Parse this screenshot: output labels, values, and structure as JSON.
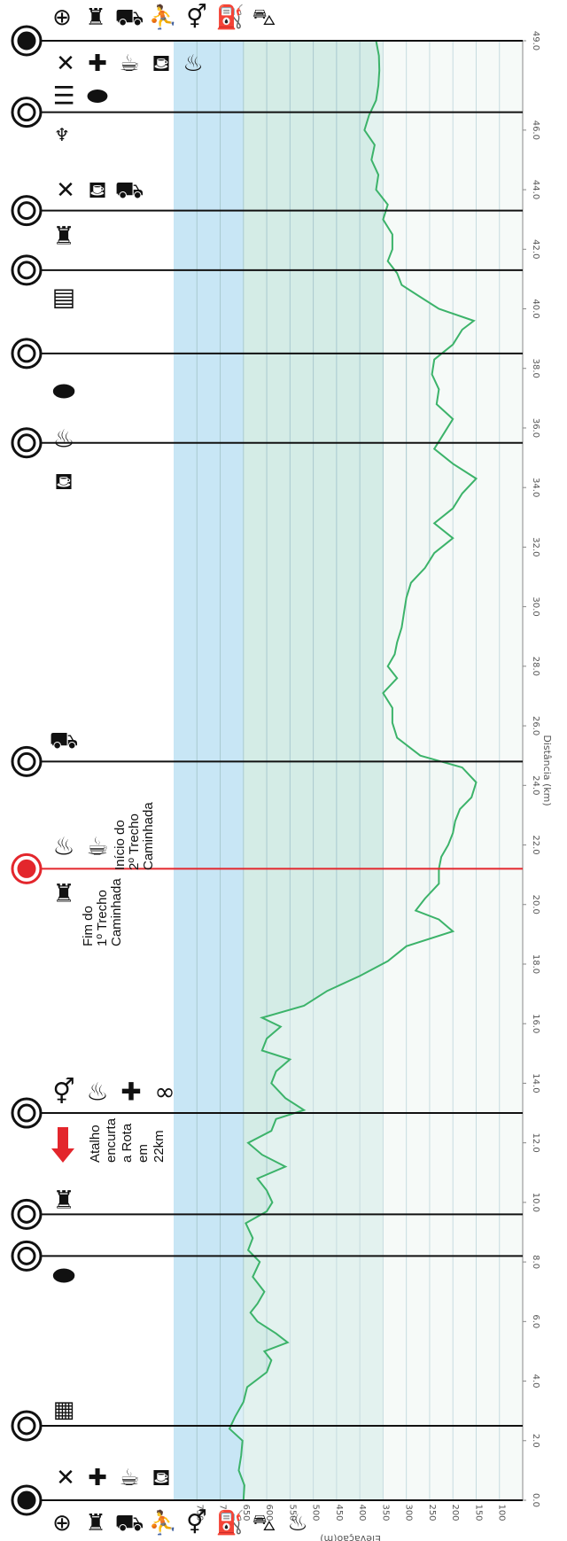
{
  "colors": {
    "profile_line": "#3cb36a",
    "marker_line": "#111111",
    "highlight_marker": "#e3262c",
    "band_blue": "#c8e6f5",
    "band_teal": "#d4ece6",
    "band_white": "#f2f8f5",
    "arrow": "#e3262c"
  },
  "chart_data": {
    "type": "area",
    "orientation": "rotated-90-clockwise",
    "x_axis": {
      "label": "Distância (km)",
      "range": [
        0,
        49
      ],
      "ticks": [
        "0.0",
        "2.0",
        "4.0",
        "6.0",
        "8.0",
        "10.0",
        "12.0",
        "14.0",
        "16.0",
        "18.0",
        "20.0",
        "22.0",
        "24.0",
        "26.0",
        "28.0",
        "30.0",
        "32.0",
        "34.0",
        "36.0",
        "38.0",
        "40.0",
        "42.0",
        "44.0",
        "46.0",
        "49.0"
      ]
    },
    "y_axis": {
      "label": "Elevação(m)",
      "range": [
        50,
        800
      ],
      "ticks": [
        "750",
        "700",
        "650",
        "600",
        "550",
        "500",
        "450",
        "400",
        "350",
        "300",
        "250",
        "200",
        "150",
        "100"
      ]
    },
    "series": [
      {
        "x": [
          0,
          0.5,
          1,
          1.5,
          2,
          2.4,
          2.8,
          3.3,
          3.8,
          4.3,
          4.7,
          5.0,
          5.3,
          5.6,
          6.0,
          6.3,
          6.6,
          7.0,
          7.5,
          8.0,
          8.4,
          8.8,
          9.3,
          9.7,
          10.0,
          10.4,
          10.8,
          11.2,
          11.6,
          12.0,
          12.4,
          12.8,
          13.1,
          13.5,
          14.0,
          14.4,
          14.8,
          15.1,
          15.5,
          15.9,
          16.2,
          16.6,
          17.1,
          17.6,
          18.1,
          18.6,
          19.1,
          19.5,
          19.8,
          20.2,
          20.7,
          21.2,
          21.6,
          22.0,
          22.4,
          22.8,
          23.2,
          23.6,
          24.1,
          24.6,
          25.0,
          25.6,
          26.1,
          26.6,
          27.1,
          27.6,
          28.0,
          28.4,
          28.8,
          29.3,
          29.8,
          30.3,
          30.8,
          31.3,
          31.8,
          32.3,
          32.8,
          33.3,
          33.8,
          34.3,
          34.8,
          35.3,
          35.8,
          36.3,
          36.8,
          37.3,
          37.8,
          38.3,
          38.8,
          39.3,
          39.6,
          40.0,
          40.4,
          40.8,
          41.2,
          41.6,
          42.0,
          42.5,
          43.0,
          43.5,
          44.0,
          44.5,
          45.0,
          45.5,
          46.0,
          46.5,
          47.0,
          47.5,
          48.0,
          48.5,
          49.0
        ],
        "y": [
          650,
          648,
          660,
          655,
          652,
          680,
          668,
          650,
          642,
          600,
          590,
          605,
          555,
          580,
          620,
          635,
          620,
          605,
          630,
          615,
          640,
          630,
          645,
          600,
          588,
          600,
          620,
          560,
          610,
          640,
          590,
          580,
          520,
          560,
          590,
          580,
          550,
          610,
          600,
          570,
          610,
          520,
          470,
          400,
          340,
          300,
          200,
          230,
          280,
          260,
          230,
          230,
          225,
          210,
          200,
          195,
          185,
          160,
          150,
          180,
          270,
          320,
          330,
          330,
          350,
          320,
          340,
          325,
          320,
          310,
          305,
          300,
          290,
          260,
          240,
          200,
          240,
          200,
          180,
          150,
          200,
          240,
          220,
          200,
          235,
          230,
          245,
          240,
          200,
          180,
          155,
          230,
          270,
          310,
          320,
          340,
          330,
          330,
          350,
          340,
          365,
          360,
          375,
          368,
          390,
          380,
          365,
          360,
          358,
          359,
          365
        ]
      }
    ],
    "annotations": [
      {
        "text_lines": [
          "Fim do",
          "1º Trecho",
          "Caminhada"
        ],
        "km": 21.2
      },
      {
        "text_lines": [
          "Início do",
          "2º Trecho",
          "Caminhada"
        ],
        "km": 21.2
      },
      {
        "text_lines": [
          "Atalho",
          "encurta",
          "a Rota",
          "em",
          "22km"
        ],
        "km": 12.4
      }
    ]
  },
  "markers": [
    {
      "km": 0,
      "highlight": false
    },
    {
      "km": 2.5,
      "highlight": false
    },
    {
      "km": 8.2,
      "highlight": false
    },
    {
      "km": 9.6,
      "highlight": false
    },
    {
      "km": 13.0,
      "highlight": false
    },
    {
      "km": 21.2,
      "highlight": true
    },
    {
      "km": 24.8,
      "highlight": false
    },
    {
      "km": 35.5,
      "highlight": false
    },
    {
      "km": 38.5,
      "highlight": false
    },
    {
      "km": 41.3,
      "highlight": false
    },
    {
      "km": 43.3,
      "highlight": false
    },
    {
      "km": 46.6,
      "highlight": false
    },
    {
      "km": 49.0,
      "highlight": false
    }
  ],
  "service_icons": {
    "bottom_row": [
      "atm-icon",
      "castle-icon",
      "cart-icon",
      "hiker-icon",
      "toilets-icon",
      "fuel-icon",
      "bus-icon",
      "rest-icon"
    ],
    "start_km0": [
      "restaurant-icon",
      "pharmacy-icon",
      "coffee-icon",
      "shopping-icon"
    ],
    "km2_5": [
      "map-icon"
    ],
    "km8_2": [
      "bread-icon"
    ],
    "km9_6": [
      "castle-icon"
    ],
    "km13": [
      "toilets-icon",
      "rest-icon",
      "pharmacy-icon",
      "olympic-icon"
    ],
    "km21_fim": [
      "castle-icon"
    ],
    "km21_inicio": [
      "rest-icon",
      "coffee-icon"
    ],
    "km24_8": [
      "cart-icon"
    ],
    "km35_5": [
      "shopping-icon"
    ],
    "km38_5": [
      "rest-icon"
    ],
    "km41_3": [
      "bread-icon"
    ],
    "km43_3": [
      "building-icon"
    ],
    "km44": [
      "castle-icon"
    ],
    "km46_6": [
      "restaurant-icon",
      "shopping-icon",
      "cart-icon"
    ],
    "km47": [
      "wine-icon"
    ],
    "km49": [
      "museum-icon",
      "bread-icon"
    ],
    "end_km49": [
      "restaurant-icon",
      "pharmacy-icon",
      "coffee-icon",
      "shopping-icon",
      "rest-icon"
    ],
    "top_row": [
      "atm-icon",
      "castle-icon",
      "cart-icon",
      "hiker-icon",
      "toilets-icon",
      "fuel-icon",
      "bus-icon"
    ]
  },
  "icon_glyphs": {
    "atm-icon": "⊕",
    "castle-icon": "♜",
    "cart-icon": "⛟",
    "hiker-icon": "⛹",
    "toilets-icon": "⚥",
    "fuel-icon": "⛽",
    "bus-icon": "⛍",
    "rest-icon": "♨",
    "restaurant-icon": "✕",
    "pharmacy-icon": "✚",
    "coffee-icon": "☕",
    "shopping-icon": "⛾",
    "map-icon": "▦",
    "bread-icon": "⬬",
    "olympic-icon": "∞",
    "building-icon": "▤",
    "museum-icon": "☰",
    "wine-icon": "♆"
  }
}
